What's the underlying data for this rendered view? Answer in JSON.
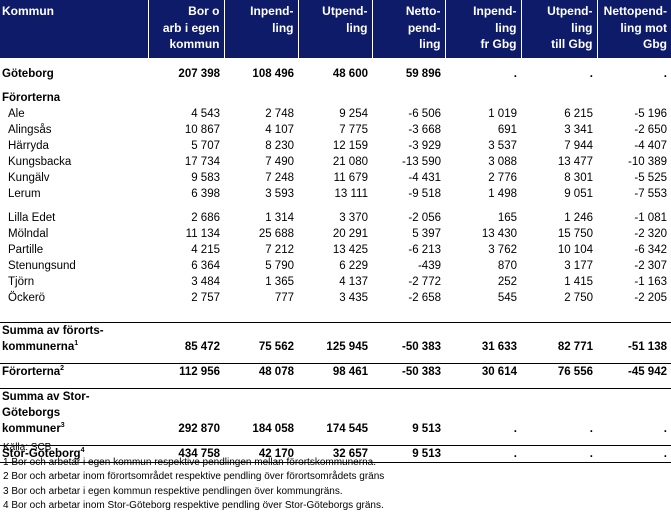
{
  "headers": [
    "Kommun",
    "Bor o\narb i egen\nkommun",
    "Inpend-\nling",
    "Utpend-\nling",
    "Netto-\npend-\nling",
    "Inpend-\nling\nfr Gbg",
    "Utpend-\nling\ntill Gbg",
    "Nettopend-\nling mot\nGbg"
  ],
  "rows": {
    "goteborg": [
      "Göteborg",
      "207 398",
      "108 496",
      "48 600",
      "59 896",
      ".",
      ".",
      "."
    ],
    "forortsection": "Förorterna",
    "group1": [
      [
        "Ale",
        "4 543",
        "2 748",
        "9 254",
        "-6 506",
        "1 019",
        "6 215",
        "-5 196"
      ],
      [
        "Alingsås",
        "10 867",
        "4 107",
        "7 775",
        "-3 668",
        "691",
        "3 341",
        "-2 650"
      ],
      [
        "Härryda",
        "5 707",
        "8 230",
        "12 159",
        "-3 929",
        "3 537",
        "7 944",
        "-4 407"
      ],
      [
        "Kungsbacka",
        "17 734",
        "7 490",
        "21 080",
        "-13 590",
        "3 088",
        "13 477",
        "-10 389"
      ],
      [
        "Kungälv",
        "9 583",
        "7 248",
        "11 679",
        "-4 431",
        "2 776",
        "8 301",
        "-5 525"
      ],
      [
        "Lerum",
        "6 398",
        "3 593",
        "13 111",
        "-9 518",
        "1 498",
        "9 051",
        "-7 553"
      ]
    ],
    "group2": [
      [
        "Lilla Edet",
        "2 686",
        "1 314",
        "3 370",
        "-2 056",
        "165",
        "1 246",
        "-1 081"
      ],
      [
        "Mölndal",
        "11 134",
        "25 688",
        "20 291",
        "5 397",
        "13 430",
        "15 750",
        "-2 320"
      ],
      [
        "Partille",
        "4 215",
        "7 212",
        "13 425",
        "-6 213",
        "3 762",
        "10 104",
        "-6 342"
      ],
      [
        "Stenungsund",
        "6 364",
        "5 790",
        "6 229",
        "-439",
        "870",
        "3 177",
        "-2 307"
      ],
      [
        "Tjörn",
        "3 484",
        "1 365",
        "4 137",
        "-2 772",
        "252",
        "1 415",
        "-1 163"
      ],
      [
        "Öckerö",
        "2 757",
        "777",
        "3 435",
        "-2 658",
        "545",
        "2 750",
        "-2 205"
      ]
    ],
    "summa_forort": {
      "label": "Summa av förorts-\nkommunerna",
      "sup": "1",
      "values": [
        "85 472",
        "75 562",
        "125 945",
        "-50 383",
        "31 633",
        "82 771",
        "-51 138"
      ]
    },
    "fororterna2": {
      "label": "Förorterna",
      "sup": "2",
      "values": [
        "112 956",
        "48 078",
        "98 461",
        "-50 383",
        "30 614",
        "76 556",
        "-45 942"
      ]
    },
    "summa_stor": {
      "label": "Summa av Stor-Göteborgs\nkommuner",
      "sup": "3",
      "values": [
        "292 870",
        "184 058",
        "174 545",
        "9 513",
        ".",
        ".",
        "."
      ]
    },
    "stor_goteborg": {
      "label": "Stor-Göteborg",
      "sup": "4",
      "values": [
        "434 758",
        "42 170",
        "32 657",
        "9 513",
        ".",
        ".",
        "."
      ]
    }
  },
  "footnotes": [
    "Källa:  SCB",
    "1  Bor och arbetar i egen kommun respektive pendlingen mellan förortskommunerna.",
    "2  Bor och arbetar inom förortsområdet respektive pendling över förortsområdets gräns",
    "3  Bor och arbetar i egen kommun respektive pendlingen över kommungräns.",
    "4  Bor och arbetar inom Stor-Göteborg respektive pendling över Stor-Göteborgs gräns."
  ]
}
